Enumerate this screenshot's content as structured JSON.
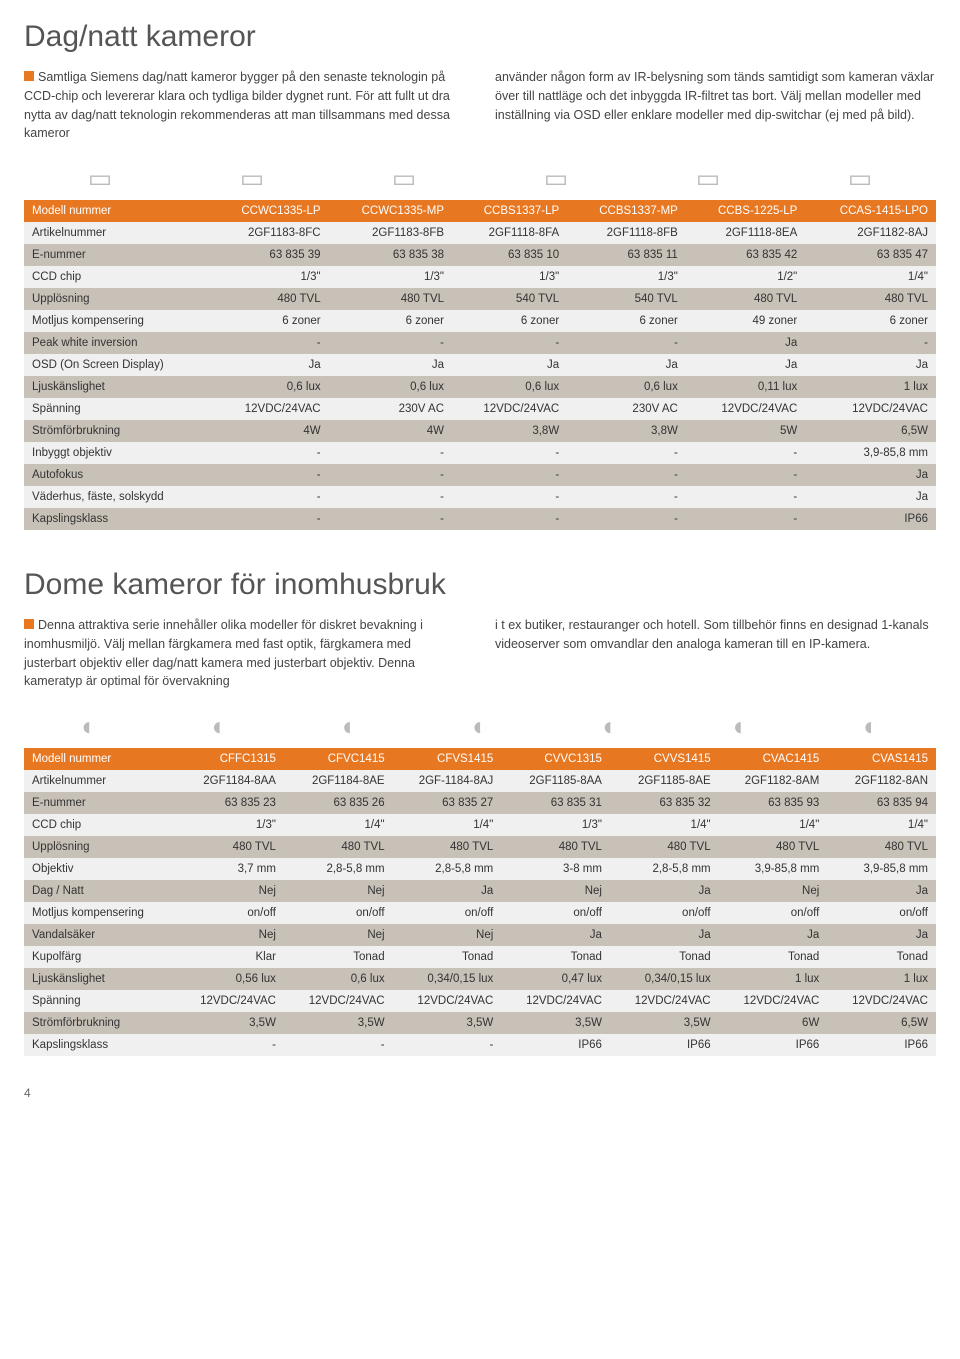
{
  "section1": {
    "title": "Dag/natt kameror",
    "intro_left": "Samtliga Siemens dag/natt kameror bygger på den senaste teknologin på CCD-chip och levererar klara och tydliga bilder dygnet runt. För att fullt ut dra nytta av dag/natt teknologin rekommenderas att man tillsammans med dessa kameror",
    "intro_right": "använder någon form av IR-belysning som tänds samtidigt som kameran växlar över till nattläge och det inbyggda IR-filtret tas bort. Välj mellan modeller med inställning via OSD eller enklare modeller med dip-switchar (ej med på bild).",
    "header_label": "Modell nummer",
    "models": [
      "CCWC1335-LP",
      "CCWC1335-MP",
      "CCBS1337-LP",
      "CCBS1337-MP",
      "CCBS-1225-LP",
      "CCAS-1415-LPO"
    ],
    "rows": [
      {
        "label": "Artikelnummer",
        "values": [
          "2GF1183-8FC",
          "2GF1183-8FB",
          "2GF1118-8FA",
          "2GF1118-8FB",
          "2GF1118-8EA",
          "2GF1182-8AJ"
        ]
      },
      {
        "label": "E-nummer",
        "values": [
          "63 835 39",
          "63 835 38",
          "63 835 10",
          "63 835 11",
          "63 835 42",
          "63 835 47"
        ]
      },
      {
        "label": "CCD chip",
        "values": [
          "1/3\"",
          "1/3\"",
          "1/3\"",
          "1/3\"",
          "1/2\"",
          "1/4\""
        ]
      },
      {
        "label": "Upplösning",
        "values": [
          "480 TVL",
          "480 TVL",
          "540 TVL",
          "540 TVL",
          "480 TVL",
          "480 TVL"
        ]
      },
      {
        "label": "Motljus kompensering",
        "values": [
          "6 zoner",
          "6 zoner",
          "6 zoner",
          "6 zoner",
          "49 zoner",
          "6 zoner"
        ]
      },
      {
        "label": "Peak white inversion",
        "values": [
          "-",
          "-",
          "-",
          "-",
          "Ja",
          "-"
        ]
      },
      {
        "label": "OSD (On Screen Display)",
        "values": [
          "Ja",
          "Ja",
          "Ja",
          "Ja",
          "Ja",
          "Ja"
        ]
      },
      {
        "label": "Ljuskänslighet",
        "values": [
          "0,6 lux",
          "0,6 lux",
          "0,6 lux",
          "0,6 lux",
          "0,11 lux",
          "1 lux"
        ]
      },
      {
        "label": "Spänning",
        "values": [
          "12VDC/24VAC",
          "230V AC",
          "12VDC/24VAC",
          "230V AC",
          "12VDC/24VAC",
          "12VDC/24VAC"
        ]
      },
      {
        "label": "Strömförbrukning",
        "values": [
          "4W",
          "4W",
          "3,8W",
          "3,8W",
          "5W",
          "6,5W"
        ]
      },
      {
        "label": "Inbyggt objektiv",
        "values": [
          "-",
          "-",
          "-",
          "-",
          "-",
          "3,9-85,8 mm"
        ]
      },
      {
        "label": "Autofokus",
        "values": [
          "-",
          "-",
          "-",
          "-",
          "-",
          "Ja"
        ]
      },
      {
        "label": "Väderhus, fäste, solskydd",
        "values": [
          "-",
          "-",
          "-",
          "-",
          "-",
          "Ja"
        ]
      },
      {
        "label": "Kapslingsklass",
        "values": [
          "-",
          "-",
          "-",
          "-",
          "-",
          "IP66"
        ]
      }
    ]
  },
  "section2": {
    "title": "Dome kameror för inomhusbruk",
    "intro_left": "Denna attraktiva serie innehåller olika modeller för diskret bevakning i inomhusmiljö. Välj mellan färgkamera med fast optik, färgkamera med justerbart objektiv eller dag/natt kamera med justerbart objektiv. Denna kameratyp är optimal för övervakning",
    "intro_right": "i t ex butiker, restauranger och hotell. Som tillbehör finns en designad 1-kanals videoserver som omvandlar den analoga kameran till en IP-kamera.",
    "header_label": "Modell nummer",
    "models": [
      "CFFC1315",
      "CFVC1415",
      "CFVS1415",
      "CVVC1315",
      "CVVS1415",
      "CVAC1415",
      "CVAS1415"
    ],
    "rows": [
      {
        "label": "Artikelnummer",
        "values": [
          "2GF1184-8AA",
          "2GF1184-8AE",
          "2GF-1184-8AJ",
          "2GF1185-8AA",
          "2GF1185-8AE",
          "2GF1182-8AM",
          "2GF1182-8AN"
        ]
      },
      {
        "label": "E-nummer",
        "values": [
          "63 835 23",
          "63 835 26",
          "63 835 27",
          "63 835 31",
          "63 835 32",
          "63 835 93",
          "63 835 94"
        ]
      },
      {
        "label": "CCD chip",
        "values": [
          "1/3\"",
          "1/4\"",
          "1/4\"",
          "1/3\"",
          "1/4\"",
          "1/4\"",
          "1/4\""
        ]
      },
      {
        "label": "Upplösning",
        "values": [
          "480 TVL",
          "480 TVL",
          "480 TVL",
          "480 TVL",
          "480 TVL",
          "480 TVL",
          "480 TVL"
        ]
      },
      {
        "label": "Objektiv",
        "values": [
          "3,7 mm",
          "2,8-5,8 mm",
          "2,8-5,8 mm",
          "3-8 mm",
          "2,8-5,8 mm",
          "3,9-85,8 mm",
          "3,9-85,8 mm"
        ]
      },
      {
        "label": "Dag / Natt",
        "values": [
          "Nej",
          "Nej",
          "Ja",
          "Nej",
          "Ja",
          "Nej",
          "Ja"
        ]
      },
      {
        "label": "Motljus kompensering",
        "values": [
          "on/off",
          "on/off",
          "on/off",
          "on/off",
          "on/off",
          "on/off",
          "on/off"
        ]
      },
      {
        "label": "Vandalsäker",
        "values": [
          "Nej",
          "Nej",
          "Nej",
          "Ja",
          "Ja",
          "Ja",
          "Ja"
        ]
      },
      {
        "label": "Kupolfärg",
        "values": [
          "Klar",
          "Tonad",
          "Tonad",
          "Tonad",
          "Tonad",
          "Tonad",
          "Tonad"
        ]
      },
      {
        "label": "Ljuskänslighet",
        "values": [
          "0,56 lux",
          "0,6 lux",
          "0,34/0,15 lux",
          "0,47 lux",
          "0,34/0,15 lux",
          "1 lux",
          "1 lux"
        ]
      },
      {
        "label": "Spänning",
        "values": [
          "12VDC/24VAC",
          "12VDC/24VAC",
          "12VDC/24VAC",
          "12VDC/24VAC",
          "12VDC/24VAC",
          "12VDC/24VAC",
          "12VDC/24VAC"
        ]
      },
      {
        "label": "Strömförbrukning",
        "values": [
          "3,5W",
          "3,5W",
          "3,5W",
          "3,5W",
          "3,5W",
          "6W",
          "6,5W"
        ]
      },
      {
        "label": "Kapslingsklass",
        "values": [
          "-",
          "-",
          "-",
          "IP66",
          "IP66",
          "IP66",
          "IP66"
        ]
      }
    ]
  },
  "colors": {
    "accent": "#e87722",
    "row_alt1": "#f0f0f0",
    "row_alt2": "#c8c1b8"
  },
  "page_number": "4"
}
